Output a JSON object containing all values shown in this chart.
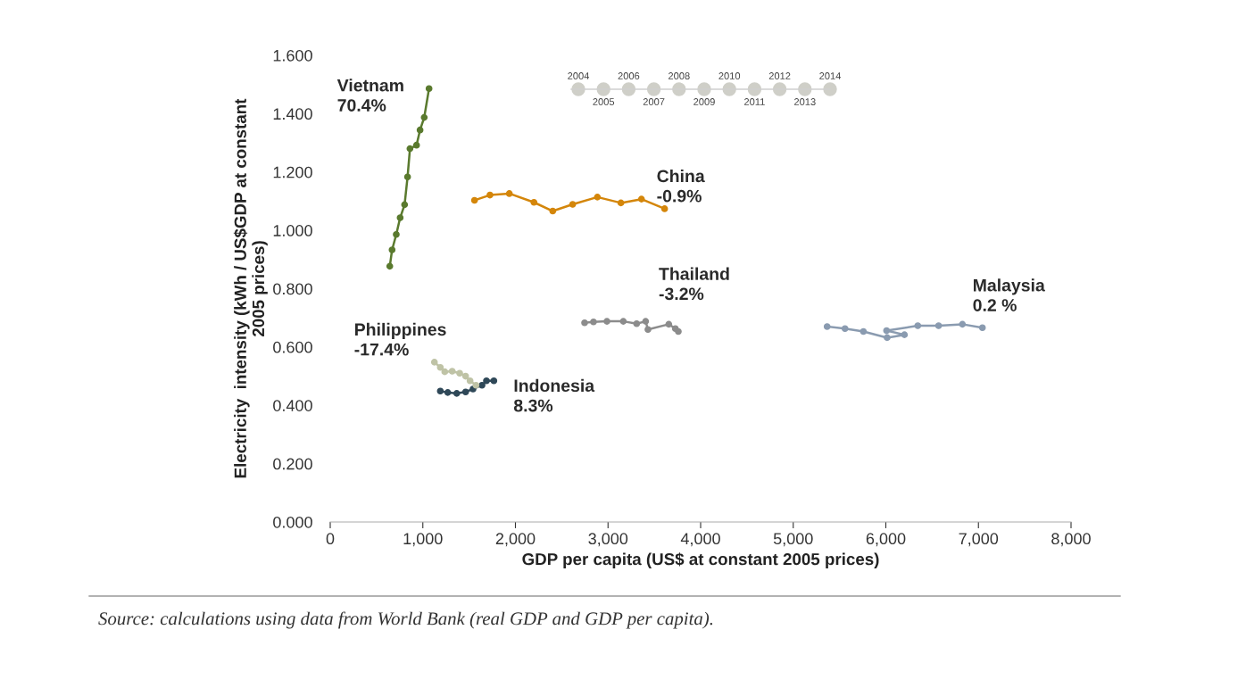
{
  "chart_data": {
    "type": "line",
    "xlabel": "GDP per capita (US$ at constant 2005 prices)",
    "ylabel": "Electricity  intensity (kWh / US$GDP at constant\n2005 prices)",
    "xlim": [
      0,
      8000
    ],
    "xticks": [
      0,
      {
        "value": 1000,
        "label": "1,000"
      },
      {
        "value": 2000,
        "label": "2,000"
      },
      {
        "value": 3000,
        "label": "3,000"
      },
      {
        "value": 4000,
        "label": "4,000"
      },
      {
        "value": 5000,
        "label": "5,000"
      },
      {
        "value": 6000,
        "label": "6,000"
      },
      {
        "value": 7000,
        "label": "7,000"
      },
      {
        "value": 8000,
        "label": "8,000"
      }
    ],
    "ylim": [
      0,
      1.6
    ],
    "yticks": [
      {
        "value": 0,
        "label": "0.000"
      },
      {
        "value": 0.2,
        "label": "0.200"
      },
      {
        "value": 0.4,
        "label": "0.400"
      },
      {
        "value": 0.6,
        "label": "0.600"
      },
      {
        "value": 0.8,
        "label": "0.800"
      },
      {
        "value": 1.0,
        "label": "1.000"
      },
      {
        "value": 1.2,
        "label": "1.200"
      },
      {
        "value": 1.4,
        "label": "1.400"
      },
      {
        "value": 1.6,
        "label": "1.600"
      }
    ],
    "grid": false,
    "legend": false,
    "marker": "circle",
    "line_style": "solid",
    "series": [
      {
        "name": "Vietnam\n70.4%",
        "color": "#5a7a2e",
        "x": [
          643,
          668,
          713,
          755,
          803,
          835,
          861,
          932,
          970,
          1015,
          1067
        ],
        "values": [
          0.877,
          0.933,
          0.986,
          1.043,
          1.088,
          1.183,
          1.28,
          1.292,
          1.344,
          1.387,
          1.486
        ]
      },
      {
        "name": "China\n-0.9%",
        "color": "#d4860a",
        "x": [
          1558,
          1725,
          1934,
          2200,
          2403,
          2618,
          2885,
          3139,
          3361,
          3611
        ],
        "values": [
          1.103,
          1.121,
          1.126,
          1.096,
          1.066,
          1.089,
          1.114,
          1.094,
          1.107,
          1.074
        ]
      },
      {
        "name": "Thailand\n-3.2%",
        "color": "#8c8c8c",
        "x": [
          2747,
          2843,
          2988,
          3165,
          3309,
          3406,
          3431,
          3656,
          3727,
          3759
        ],
        "values": [
          0.683,
          0.686,
          0.688,
          0.688,
          0.68,
          0.688,
          0.66,
          0.678,
          0.663,
          0.653
        ]
      },
      {
        "name": "Malaysia\n0.2 %",
        "color": "#8a9bb0",
        "x": [
          5366,
          5559,
          5758,
          6014,
          6201,
          6008,
          6345,
          6570,
          6827,
          7043
        ],
        "values": [
          0.67,
          0.663,
          0.653,
          0.632,
          0.642,
          0.656,
          0.673,
          0.673,
          0.678,
          0.666
        ]
      },
      {
        "name": "Philippines\n-17.4%",
        "color": "#bfc3a6",
        "x": [
          1125,
          1189,
          1237,
          1317,
          1398,
          1462,
          1510,
          1574
        ],
        "values": [
          0.548,
          0.53,
          0.515,
          0.517,
          0.51,
          0.5,
          0.484,
          0.469
        ]
      },
      {
        "name": "Indonesia\n8.3%",
        "color": "#2f4858",
        "x": [
          1189,
          1269,
          1366,
          1462,
          1542,
          1639,
          1687,
          1767
        ],
        "values": [
          0.449,
          0.444,
          0.441,
          0.446,
          0.456,
          0.469,
          0.484,
          0.484
        ]
      }
    ],
    "annotations": [
      "Source: calculations using data from World Bank (real GDP and GDP per capita).",
      "2004",
      "2005",
      "2006",
      "2007",
      "2008",
      "2009",
      "2010",
      "2011",
      "2012",
      "2013",
      "2014"
    ]
  }
}
